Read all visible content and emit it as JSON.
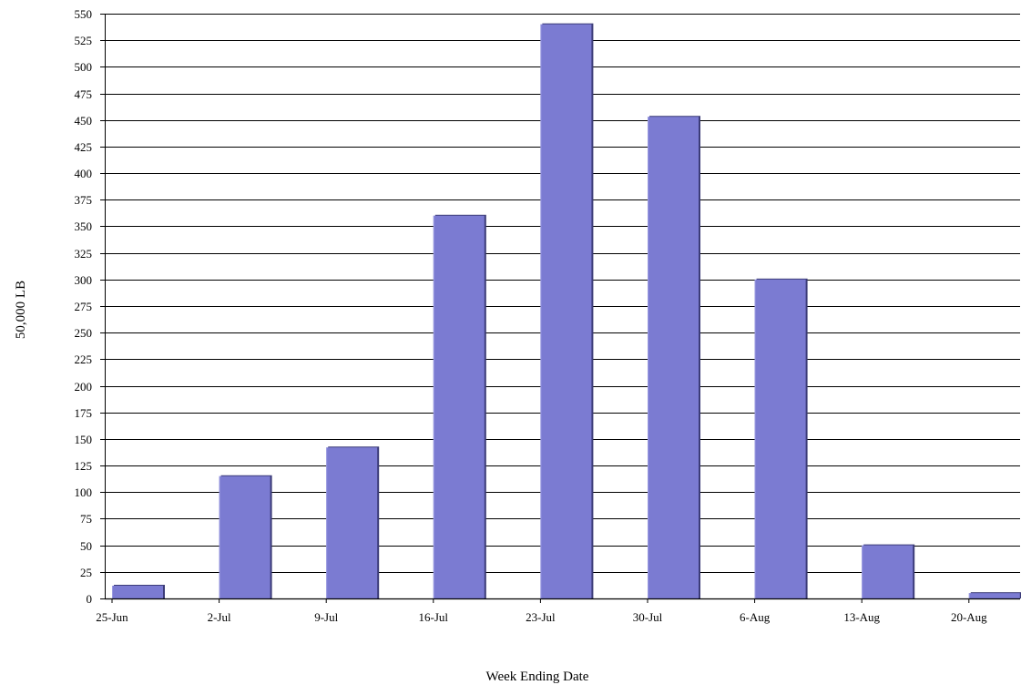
{
  "chart_data": {
    "type": "bar",
    "title": "",
    "xlabel": "Week Ending Date",
    "ylabel": "50,000 LB",
    "categories": [
      "25-Jun",
      "2-Jul",
      "9-Jul",
      "16-Jul",
      "23-Jul",
      "30-Jul",
      "6-Aug",
      "13-Aug",
      "20-Aug"
    ],
    "values": [
      12,
      115,
      142,
      360,
      540,
      453,
      300,
      50,
      5
    ],
    "ylim": [
      0,
      550
    ],
    "yticks": [
      0,
      25,
      50,
      75,
      100,
      125,
      150,
      175,
      200,
      225,
      250,
      275,
      300,
      325,
      350,
      375,
      400,
      425,
      450,
      475,
      500,
      525,
      550
    ],
    "grid": true,
    "legend": "none",
    "bar_color": "#7b7bd2",
    "bar_shadow_color": "#3c3c78",
    "gridline_color": "#000000"
  }
}
